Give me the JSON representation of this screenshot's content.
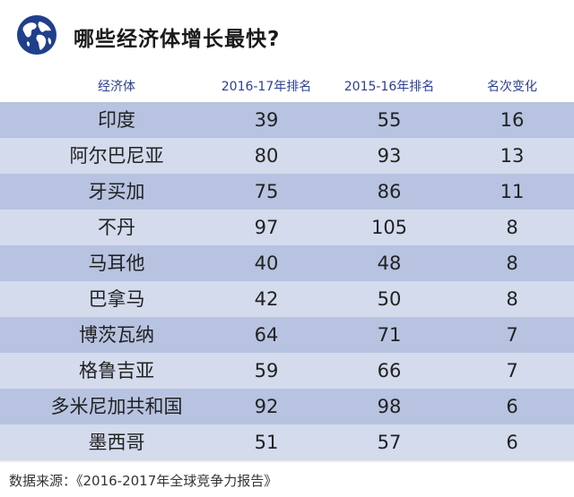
{
  "title": "哪些经济体增长最快?",
  "source": "数据来源：《2016-2017年全球竞争力报告》",
  "colors": {
    "header_text": "#2c3f8f",
    "row_dark": "#b7c3e0",
    "row_light": "#d3dbed",
    "globe_blue": "#1f3f8c"
  },
  "icon": "globe-icon",
  "chart_data": {
    "type": "table",
    "columns": [
      "经济体",
      "2016-17年排名",
      "2015-16年排名",
      "名次变化"
    ],
    "rows": [
      [
        "印度",
        "39",
        "55",
        "16"
      ],
      [
        "阿尔巴尼亚",
        "80",
        "93",
        "13"
      ],
      [
        "牙买加",
        "75",
        "86",
        "11"
      ],
      [
        "不丹",
        "97",
        "105",
        "8"
      ],
      [
        "马耳他",
        "40",
        "48",
        "8"
      ],
      [
        "巴拿马",
        "42",
        "50",
        "8"
      ],
      [
        "博茨瓦纳",
        "64",
        "71",
        "7"
      ],
      [
        "格鲁吉亚",
        "59",
        "66",
        "7"
      ],
      [
        "多米尼加共和国",
        "92",
        "98",
        "6"
      ],
      [
        "墨西哥",
        "51",
        "57",
        "6"
      ]
    ]
  }
}
